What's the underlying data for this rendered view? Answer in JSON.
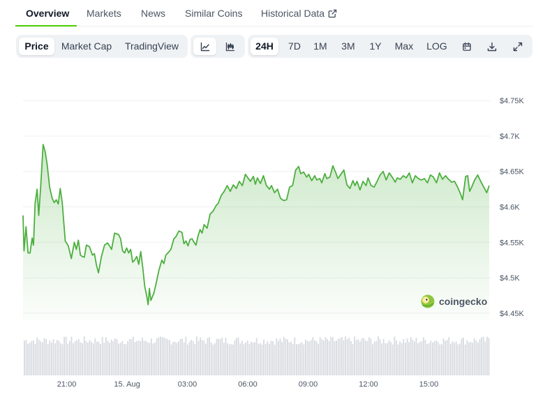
{
  "tabs": [
    {
      "label": "Overview",
      "active": true
    },
    {
      "label": "Markets"
    },
    {
      "label": "News"
    },
    {
      "label": "Similar Coins"
    },
    {
      "label": "Historical Data",
      "icon": "external-link-icon"
    }
  ],
  "chart_types": [
    {
      "label": "Price",
      "active": true
    },
    {
      "label": "Market Cap"
    },
    {
      "label": "TradingView"
    }
  ],
  "chart_styles": [
    {
      "icon": "line-chart-icon",
      "active": true
    },
    {
      "icon": "candlestick-chart-icon"
    }
  ],
  "ranges": [
    {
      "label": "24H",
      "active": true
    },
    {
      "label": "7D"
    },
    {
      "label": "1M"
    },
    {
      "label": "3M"
    },
    {
      "label": "1Y"
    },
    {
      "label": "Max"
    },
    {
      "label": "LOG"
    }
  ],
  "tools": [
    {
      "icon": "calendar-icon"
    },
    {
      "icon": "download-icon"
    },
    {
      "icon": "expand-icon"
    }
  ],
  "watermark": "coingecko",
  "colors": {
    "line": "#4caf3f",
    "accent": "#4bcc00",
    "volume": "#d7dae0",
    "grid": "#eef0f3"
  },
  "chart_data": {
    "type": "line",
    "ylim": [
      4440,
      4760
    ],
    "y_ticks": [
      {
        "value": 4750,
        "label": "$4.75K"
      },
      {
        "value": 4700,
        "label": "$4.7K"
      },
      {
        "value": 4650,
        "label": "$4.65K"
      },
      {
        "value": 4600,
        "label": "$4.6K"
      },
      {
        "value": 4550,
        "label": "$4.55K"
      },
      {
        "value": 4500,
        "label": "$4.5K"
      },
      {
        "value": 4450,
        "label": "$4.45K"
      }
    ],
    "x_range": [
      "14 Aug 18:50",
      "15 Aug 16:20"
    ],
    "x_ticks": [
      {
        "hour": 2.17,
        "label": "21:00"
      },
      {
        "hour": 5.17,
        "label": "15. Aug"
      },
      {
        "hour": 8.17,
        "label": "03:00"
      },
      {
        "hour": 11.17,
        "label": "06:00"
      },
      {
        "hour": 14.17,
        "label": "09:00"
      },
      {
        "hour": 17.17,
        "label": "12:00"
      },
      {
        "hour": 20.17,
        "label": "15:00"
      }
    ],
    "x_hours_total": 23.17,
    "points": [
      [
        0.0,
        4588
      ],
      [
        0.05,
        4538
      ],
      [
        0.15,
        4572
      ],
      [
        0.25,
        4535
      ],
      [
        0.35,
        4535
      ],
      [
        0.45,
        4556
      ],
      [
        0.52,
        4546
      ],
      [
        0.6,
        4605
      ],
      [
        0.7,
        4625
      ],
      [
        0.78,
        4588
      ],
      [
        0.88,
        4630
      ],
      [
        1.0,
        4688
      ],
      [
        1.1,
        4678
      ],
      [
        1.2,
        4660
      ],
      [
        1.32,
        4628
      ],
      [
        1.45,
        4612
      ],
      [
        1.55,
        4606
      ],
      [
        1.65,
        4610
      ],
      [
        1.75,
        4604
      ],
      [
        1.85,
        4626
      ],
      [
        1.95,
        4606
      ],
      [
        2.1,
        4552
      ],
      [
        2.25,
        4545
      ],
      [
        2.4,
        4527
      ],
      [
        2.55,
        4550
      ],
      [
        2.65,
        4540
      ],
      [
        2.75,
        4553
      ],
      [
        2.85,
        4532
      ],
      [
        2.95,
        4530
      ],
      [
        3.05,
        4529
      ],
      [
        3.15,
        4546
      ],
      [
        3.3,
        4544
      ],
      [
        3.45,
        4532
      ],
      [
        3.55,
        4534
      ],
      [
        3.65,
        4518
      ],
      [
        3.75,
        4507
      ],
      [
        3.9,
        4530
      ],
      [
        4.05,
        4546
      ],
      [
        4.2,
        4549
      ],
      [
        4.3,
        4545
      ],
      [
        4.4,
        4540
      ],
      [
        4.55,
        4563
      ],
      [
        4.75,
        4561
      ],
      [
        4.85,
        4555
      ],
      [
        4.95,
        4538
      ],
      [
        5.05,
        4535
      ],
      [
        5.15,
        4542
      ],
      [
        5.25,
        4535
      ],
      [
        5.35,
        4540
      ],
      [
        5.45,
        4522
      ],
      [
        5.55,
        4525
      ],
      [
        5.65,
        4530
      ],
      [
        5.75,
        4519
      ],
      [
        5.85,
        4537
      ],
      [
        5.95,
        4515
      ],
      [
        6.05,
        4488
      ],
      [
        6.15,
        4474
      ],
      [
        6.22,
        4462
      ],
      [
        6.28,
        4485
      ],
      [
        6.35,
        4468
      ],
      [
        6.5,
        4478
      ],
      [
        6.6,
        4490
      ],
      [
        6.75,
        4510
      ],
      [
        6.9,
        4525
      ],
      [
        7.0,
        4520
      ],
      [
        7.1,
        4532
      ],
      [
        7.2,
        4535
      ],
      [
        7.35,
        4540
      ],
      [
        7.5,
        4555
      ],
      [
        7.6,
        4558
      ],
      [
        7.75,
        4566
      ],
      [
        7.9,
        4564
      ],
      [
        8.0,
        4548
      ],
      [
        8.1,
        4552
      ],
      [
        8.2,
        4545
      ],
      [
        8.3,
        4554
      ],
      [
        8.4,
        4555
      ],
      [
        8.5,
        4550
      ],
      [
        8.6,
        4546
      ],
      [
        8.7,
        4559
      ],
      [
        8.8,
        4568
      ],
      [
        8.9,
        4563
      ],
      [
        9.0,
        4575
      ],
      [
        9.15,
        4570
      ],
      [
        9.3,
        4590
      ],
      [
        9.45,
        4594
      ],
      [
        9.6,
        4602
      ],
      [
        9.7,
        4605
      ],
      [
        9.85,
        4616
      ],
      [
        10.0,
        4622
      ],
      [
        10.15,
        4630
      ],
      [
        10.3,
        4622
      ],
      [
        10.45,
        4631
      ],
      [
        10.6,
        4626
      ],
      [
        10.75,
        4636
      ],
      [
        10.9,
        4630
      ],
      [
        11.05,
        4646
      ],
      [
        11.15,
        4642
      ],
      [
        11.3,
        4636
      ],
      [
        11.45,
        4643
      ],
      [
        11.55,
        4632
      ],
      [
        11.65,
        4641
      ],
      [
        11.8,
        4633
      ],
      [
        11.95,
        4644
      ],
      [
        12.1,
        4630
      ],
      [
        12.25,
        4625
      ],
      [
        12.35,
        4630
      ],
      [
        12.5,
        4620
      ],
      [
        12.65,
        4625
      ],
      [
        12.8,
        4612
      ],
      [
        12.95,
        4609
      ],
      [
        13.1,
        4610
      ],
      [
        13.25,
        4628
      ],
      [
        13.4,
        4630
      ],
      [
        13.55,
        4652
      ],
      [
        13.7,
        4657
      ],
      [
        13.8,
        4647
      ],
      [
        13.95,
        4649
      ],
      [
        14.1,
        4642
      ],
      [
        14.2,
        4646
      ],
      [
        14.35,
        4637
      ],
      [
        14.5,
        4644
      ],
      [
        14.6,
        4638
      ],
      [
        14.75,
        4640
      ],
      [
        14.85,
        4634
      ],
      [
        15.0,
        4647
      ],
      [
        15.1,
        4640
      ],
      [
        15.25,
        4642
      ],
      [
        15.4,
        4658
      ],
      [
        15.55,
        4648
      ],
      [
        15.65,
        4640
      ],
      [
        15.8,
        4646
      ],
      [
        15.95,
        4652
      ],
      [
        16.1,
        4631
      ],
      [
        16.25,
        4626
      ],
      [
        16.4,
        4637
      ],
      [
        16.5,
        4630
      ],
      [
        16.6,
        4636
      ],
      [
        16.75,
        4624
      ],
      [
        16.9,
        4636
      ],
      [
        17.05,
        4630
      ],
      [
        17.15,
        4641
      ],
      [
        17.3,
        4630
      ],
      [
        17.45,
        4628
      ],
      [
        17.6,
        4636
      ],
      [
        17.75,
        4645
      ],
      [
        17.9,
        4650
      ],
      [
        18.05,
        4638
      ],
      [
        18.2,
        4648
      ],
      [
        18.35,
        4642
      ],
      [
        18.5,
        4635
      ],
      [
        18.6,
        4641
      ],
      [
        18.75,
        4639
      ],
      [
        18.9,
        4644
      ],
      [
        19.05,
        4641
      ],
      [
        19.2,
        4648
      ],
      [
        19.35,
        4634
      ],
      [
        19.5,
        4644
      ],
      [
        19.65,
        4640
      ],
      [
        19.8,
        4638
      ],
      [
        19.95,
        4640
      ],
      [
        20.1,
        4634
      ],
      [
        20.25,
        4645
      ],
      [
        20.4,
        4642
      ],
      [
        20.55,
        4634
      ],
      [
        20.7,
        4648
      ],
      [
        20.85,
        4639
      ],
      [
        21.0,
        4644
      ],
      [
        21.15,
        4639
      ],
      [
        21.3,
        4635
      ],
      [
        21.45,
        4636
      ],
      [
        21.6,
        4628
      ],
      [
        21.75,
        4618
      ],
      [
        21.85,
        4610
      ],
      [
        22.0,
        4643
      ],
      [
        22.1,
        4644
      ],
      [
        22.2,
        4622
      ],
      [
        22.3,
        4628
      ],
      [
        22.45,
        4638
      ],
      [
        22.6,
        4645
      ],
      [
        22.75,
        4636
      ],
      [
        22.9,
        4628
      ],
      [
        23.05,
        4620
      ],
      [
        23.17,
        4630
      ]
    ]
  }
}
